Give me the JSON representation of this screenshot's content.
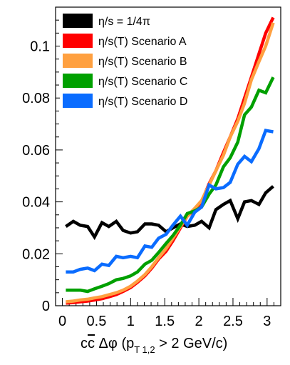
{
  "chart_data": {
    "type": "line",
    "title": "",
    "xlabel_parts": {
      "main": "c",
      "bar": "c",
      "delta_phi": " Δφ  (p",
      "sub": "T 1,2",
      "tail": " > 2 GeV/c)"
    },
    "ylabel": "",
    "xlim": [
      -0.1,
      3.2
    ],
    "ylim": [
      0,
      0.115
    ],
    "xticks": [
      0,
      0.5,
      1,
      1.5,
      2,
      2.5,
      3
    ],
    "xtick_labels": [
      "0",
      "0.5",
      "1",
      "1.5",
      "2",
      "2.5",
      "3"
    ],
    "yticks": [
      0,
      0.02,
      0.04,
      0.06,
      0.08,
      0.1
    ],
    "ytick_labels": [
      "0",
      "0.02",
      "0.04",
      "0.06",
      "0.08",
      "0.1"
    ],
    "grid": false,
    "legend_placement": "top-left",
    "x": [
      0.05,
      0.16,
      0.26,
      0.37,
      0.47,
      0.58,
      0.68,
      0.79,
      0.89,
      1.0,
      1.1,
      1.21,
      1.31,
      1.41,
      1.52,
      1.62,
      1.73,
      1.83,
      1.94,
      2.04,
      2.15,
      2.25,
      2.36,
      2.46,
      2.57,
      2.67,
      2.77,
      2.88,
      2.98,
      3.09
    ],
    "series": [
      {
        "name": "η/s = 1/4π",
        "color": "#000000",
        "values": [
          0.0305,
          0.0325,
          0.031,
          0.0305,
          0.0265,
          0.032,
          0.0305,
          0.0325,
          0.029,
          0.028,
          0.0285,
          0.0315,
          0.0315,
          0.031,
          0.0285,
          0.03,
          0.0315,
          0.0305,
          0.031,
          0.0325,
          0.03,
          0.037,
          0.039,
          0.0405,
          0.0335,
          0.04,
          0.0405,
          0.039,
          0.0435,
          0.046
        ]
      },
      {
        "name": "η/s(T) Scenario A",
        "color": "#ff0000",
        "values": [
          0.001,
          0.0012,
          0.0015,
          0.0018,
          0.0022,
          0.0027,
          0.0034,
          0.0043,
          0.0055,
          0.007,
          0.009,
          0.0115,
          0.0145,
          0.018,
          0.021,
          0.025,
          0.03,
          0.0345,
          0.037,
          0.04,
          0.047,
          0.052,
          0.059,
          0.065,
          0.072,
          0.08,
          0.088,
          0.097,
          0.105,
          0.111
        ]
      },
      {
        "name": "η/s(T) Scenario B",
        "color": "#ffa040",
        "values": [
          0.0015,
          0.0018,
          0.0022,
          0.0025,
          0.003,
          0.0035,
          0.0042,
          0.005,
          0.006,
          0.0075,
          0.0095,
          0.012,
          0.015,
          0.0185,
          0.022,
          0.026,
          0.0305,
          0.0345,
          0.0375,
          0.0405,
          0.0465,
          0.052,
          0.058,
          0.065,
          0.071,
          0.078,
          0.087,
          0.094,
          0.1,
          0.109
        ]
      },
      {
        "name": "η/s(T) Scenario C",
        "color": "#00a000",
        "values": [
          0.006,
          0.006,
          0.006,
          0.0055,
          0.0065,
          0.0075,
          0.0085,
          0.01,
          0.0105,
          0.0115,
          0.013,
          0.016,
          0.0175,
          0.0205,
          0.024,
          0.027,
          0.031,
          0.0355,
          0.0365,
          0.038,
          0.043,
          0.0465,
          0.0535,
          0.057,
          0.063,
          0.0735,
          0.0765,
          0.083,
          0.082,
          0.088
        ]
      },
      {
        "name": "η/s(T) Scenario D",
        "color": "#0a6cff",
        "values": [
          0.013,
          0.013,
          0.014,
          0.0145,
          0.0135,
          0.016,
          0.0155,
          0.019,
          0.0185,
          0.019,
          0.0185,
          0.023,
          0.0225,
          0.026,
          0.0275,
          0.031,
          0.0345,
          0.031,
          0.036,
          0.038,
          0.0465,
          0.045,
          0.0455,
          0.0475,
          0.0545,
          0.0575,
          0.0555,
          0.0605,
          0.0675,
          0.067
        ]
      }
    ]
  }
}
